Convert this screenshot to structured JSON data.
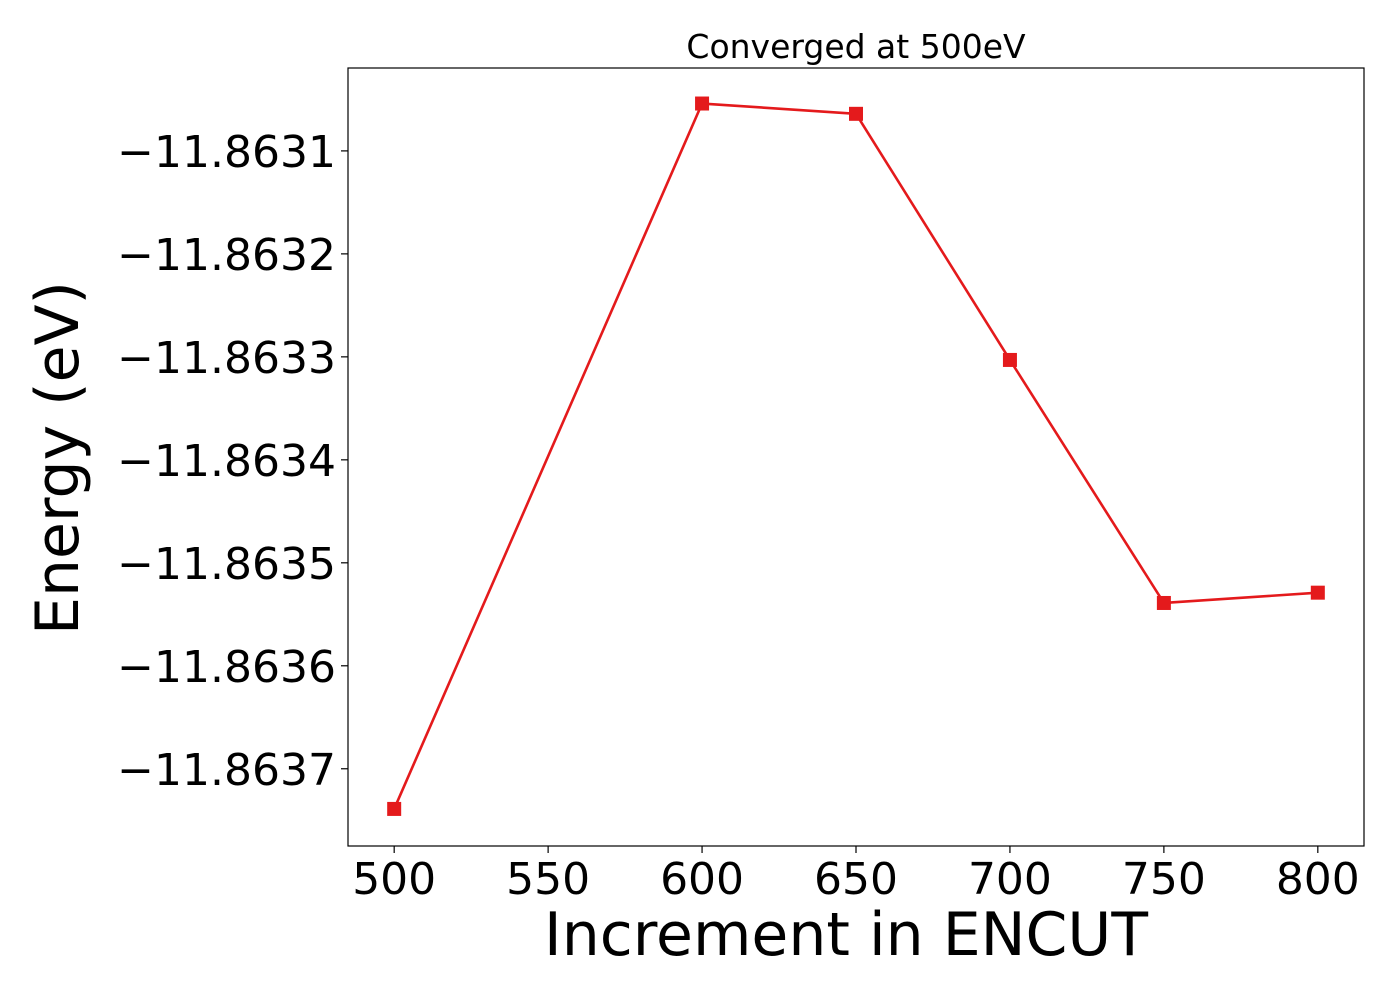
{
  "chart_data": {
    "type": "line",
    "title": "Converged at 500eV",
    "xlabel": "Increment in ENCUT",
    "ylabel": "Energy (eV)",
    "x": [
      500,
      600,
      650,
      700,
      750,
      800
    ],
    "series": [
      {
        "values": [
          -11.863739,
          -11.863054,
          -11.863064,
          -11.863303,
          -11.863539,
          -11.863529
        ],
        "color": "#e41a1c",
        "marker": "square"
      }
    ],
    "xticks": [
      500,
      550,
      600,
      650,
      700,
      750,
      800
    ],
    "xtick_labels": [
      "500",
      "550",
      "600",
      "650",
      "700",
      "750",
      "800"
    ],
    "yticks": [
      -11.8637,
      -11.8636,
      -11.8635,
      -11.8634,
      -11.8633,
      -11.8632,
      -11.8631
    ],
    "ytick_labels": [
      "−11.8637",
      "−11.8636",
      "−11.8635",
      "−11.8634",
      "−11.8633",
      "−11.8632",
      "−11.8631"
    ],
    "xlim": [
      485,
      815
    ],
    "ylim": [
      -11.863775,
      -11.8630195
    ],
    "grid": false,
    "legend": "none"
  }
}
